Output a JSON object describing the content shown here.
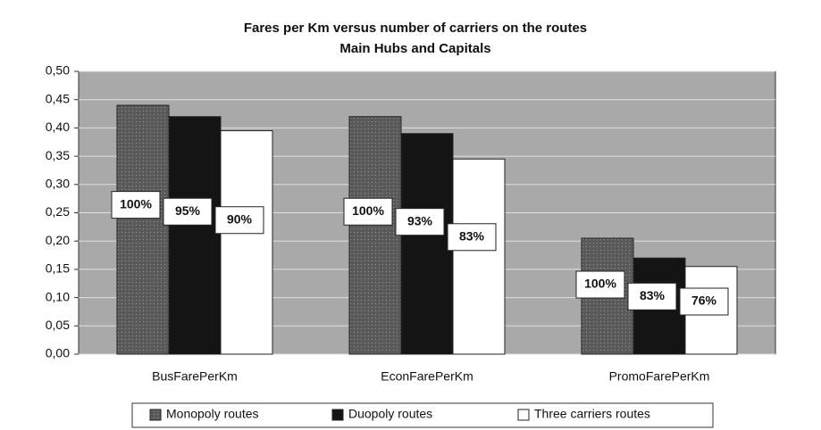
{
  "chart_data": {
    "type": "bar",
    "title": "Fares per Km versus number of carriers on the routes",
    "subtitle": "Main Hubs and Capitals",
    "categories": [
      "BusFarePerKm",
      "EconFarePerKm",
      "PromoFarePerKm"
    ],
    "series": [
      {
        "name": "Monopoly routes",
        "color": "#5a5a5a",
        "values": [
          0.44,
          0.42,
          0.205
        ],
        "labels": [
          "100%",
          "100%",
          "100%"
        ]
      },
      {
        "name": "Duopoly routes",
        "color": "#141414",
        "values": [
          0.42,
          0.39,
          0.17
        ],
        "labels": [
          "95%",
          "93%",
          "83%"
        ]
      },
      {
        "name": "Three carriers routes",
        "color": "#ffffff",
        "values": [
          0.395,
          0.345,
          0.155
        ],
        "labels": [
          "90%",
          "83%",
          "76%"
        ]
      }
    ],
    "ylim": [
      0,
      0.5
    ],
    "yticks": [
      {
        "value": 0,
        "label": "0,00"
      },
      {
        "value": 0.05,
        "label": "0,05"
      },
      {
        "value": 0.1,
        "label": "0,10"
      },
      {
        "value": 0.15,
        "label": "0,15"
      },
      {
        "value": 0.2,
        "label": "0,20"
      },
      {
        "value": 0.25,
        "label": "0,25"
      },
      {
        "value": 0.3,
        "label": "0,30"
      },
      {
        "value": 0.35,
        "label": "0,35"
      },
      {
        "value": 0.4,
        "label": "0,40"
      },
      {
        "value": 0.45,
        "label": "0,45"
      },
      {
        "value": 0.5,
        "label": "0,50"
      }
    ],
    "grid": true,
    "legend": "bottom"
  }
}
